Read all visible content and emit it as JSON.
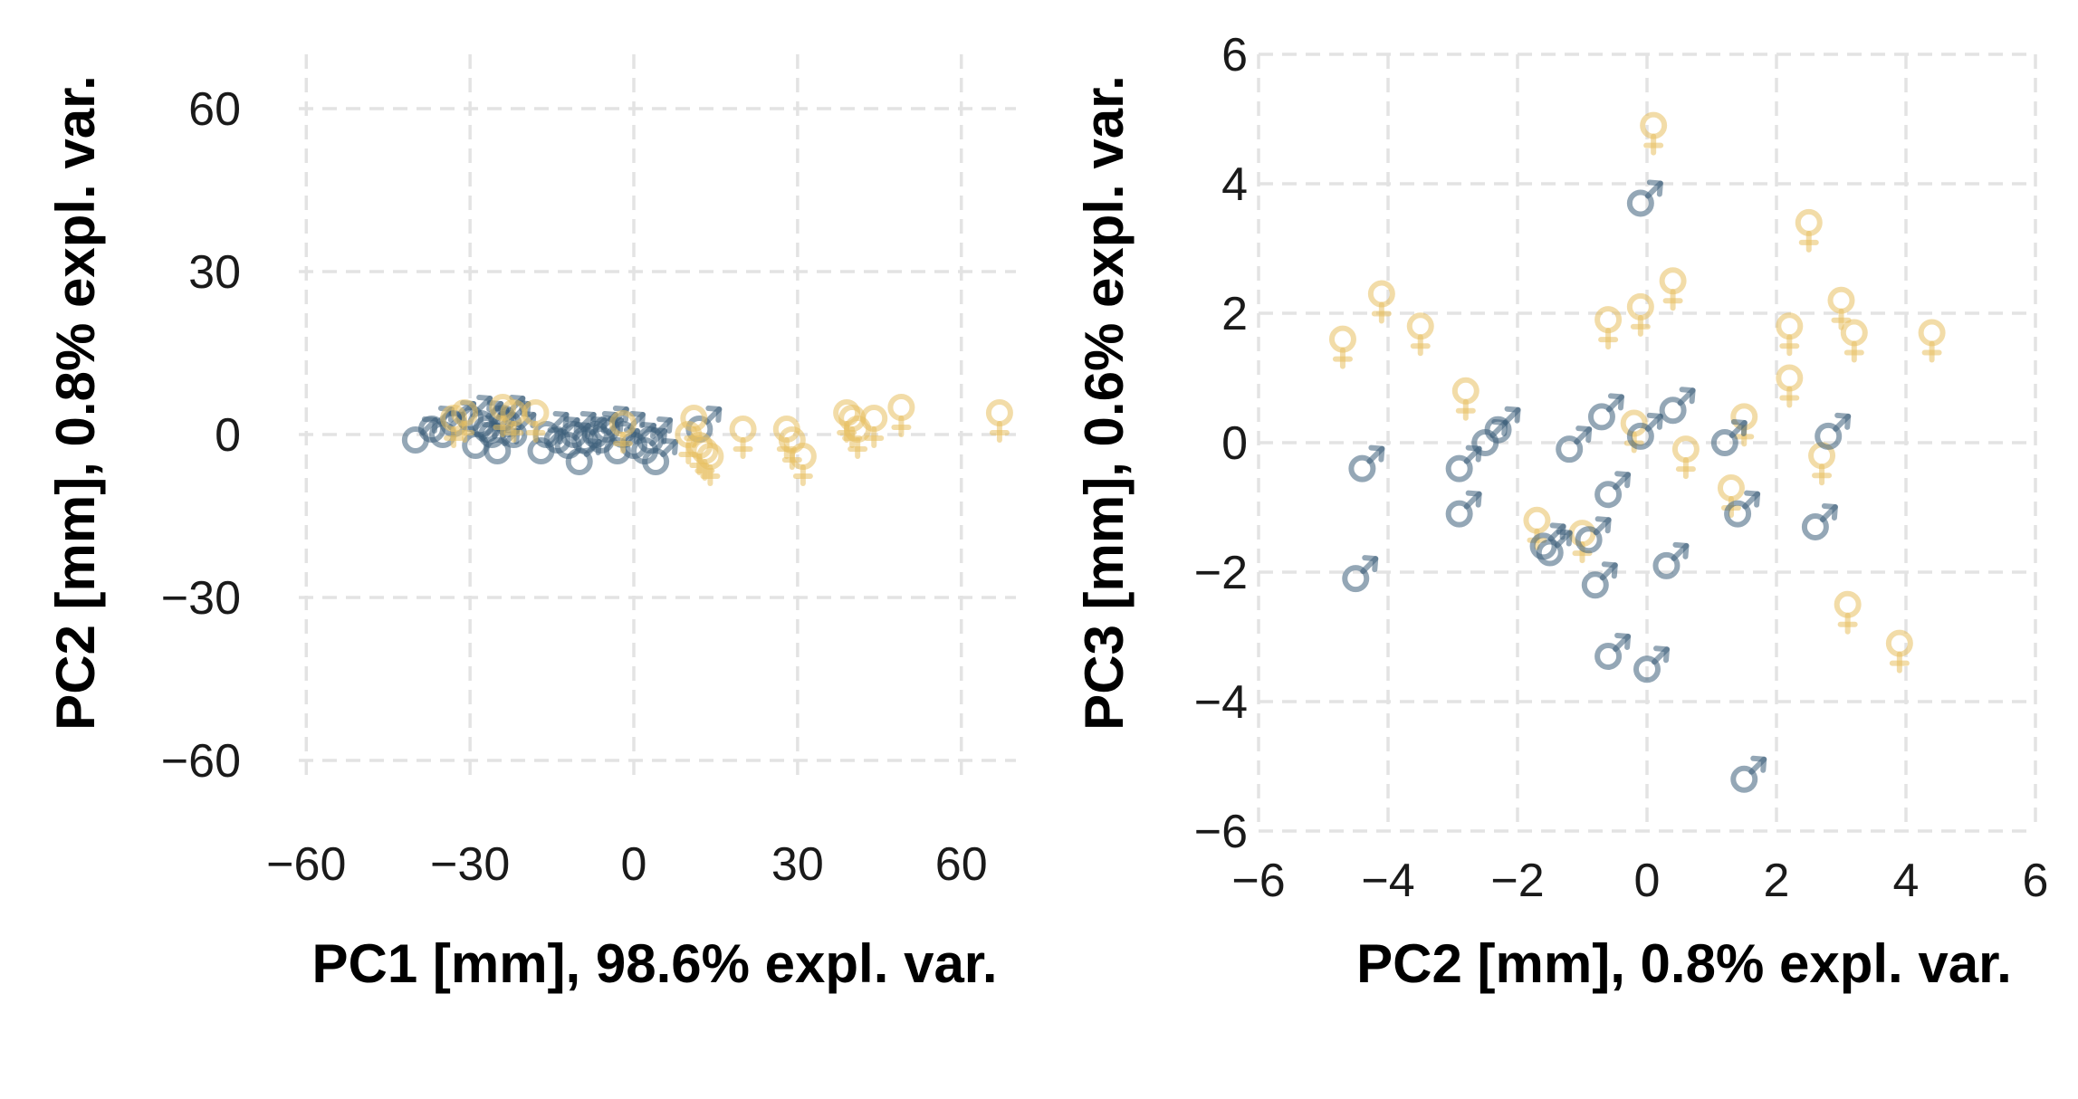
{
  "colors": {
    "male": "#3d5f7a",
    "female": "#e8c060",
    "grid": "#e3e3e3"
  },
  "chart_data": [
    {
      "type": "scatter",
      "xlabel": "PC1 [mm], 98.6% expl. var.",
      "ylabel": "PC2 [mm], 0.8% expl. var.",
      "xlim": [
        -70,
        70
      ],
      "ylim": [
        -70,
        70
      ],
      "xticks": [
        -60,
        -30,
        0,
        30,
        60
      ],
      "yticks": [
        -60,
        -30,
        0,
        30,
        60
      ],
      "xtick_labels": [
        "−60",
        "−30",
        "0",
        "30",
        "60"
      ],
      "ytick_labels": [
        "−60",
        "−30",
        "0",
        "30",
        "60"
      ],
      "grid": true,
      "marker_symbols": [
        "male",
        "female"
      ],
      "points": [
        {
          "x": -40,
          "y": -1,
          "s": "male"
        },
        {
          "x": -37,
          "y": 1,
          "s": "male"
        },
        {
          "x": -35,
          "y": 0,
          "s": "male"
        },
        {
          "x": -33,
          "y": 2,
          "s": "male"
        },
        {
          "x": -30,
          "y": 3,
          "s": "male"
        },
        {
          "x": -29,
          "y": -2,
          "s": "male"
        },
        {
          "x": -28,
          "y": 2,
          "s": "male"
        },
        {
          "x": -27,
          "y": 1,
          "s": "male"
        },
        {
          "x": -26,
          "y": 0,
          "s": "male"
        },
        {
          "x": -25,
          "y": -3,
          "s": "male"
        },
        {
          "x": -24,
          "y": 3,
          "s": "male"
        },
        {
          "x": -23,
          "y": 2,
          "s": "male"
        },
        {
          "x": -22,
          "y": 0,
          "s": "male"
        },
        {
          "x": -17,
          "y": -3,
          "s": "male"
        },
        {
          "x": -16,
          "y": 0,
          "s": "male"
        },
        {
          "x": -14,
          "y": -1,
          "s": "male"
        },
        {
          "x": -12,
          "y": -2,
          "s": "male"
        },
        {
          "x": -11,
          "y": 0,
          "s": "male"
        },
        {
          "x": -10,
          "y": -5,
          "s": "male"
        },
        {
          "x": -9,
          "y": -1,
          "s": "male"
        },
        {
          "x": -7,
          "y": 0,
          "s": "male"
        },
        {
          "x": -6,
          "y": -1,
          "s": "male"
        },
        {
          "x": -5,
          "y": 1,
          "s": "male"
        },
        {
          "x": -3,
          "y": -3,
          "s": "male"
        },
        {
          "x": -2,
          "y": 0,
          "s": "male"
        },
        {
          "x": 0,
          "y": -2,
          "s": "male"
        },
        {
          "x": 2,
          "y": -3,
          "s": "male"
        },
        {
          "x": 3,
          "y": -1,
          "s": "male"
        },
        {
          "x": 4,
          "y": -5,
          "s": "male"
        },
        {
          "x": 12,
          "y": 1,
          "s": "male"
        },
        {
          "x": -33,
          "y": 3,
          "s": "female"
        },
        {
          "x": -31,
          "y": 4,
          "s": "female"
        },
        {
          "x": -24,
          "y": 5,
          "s": "female"
        },
        {
          "x": -22,
          "y": 4,
          "s": "female"
        },
        {
          "x": -18,
          "y": 4,
          "s": "female"
        },
        {
          "x": -2,
          "y": 2,
          "s": "female"
        },
        {
          "x": 10,
          "y": 0,
          "s": "female"
        },
        {
          "x": 11,
          "y": 3,
          "s": "female"
        },
        {
          "x": 12,
          "y": -2,
          "s": "female"
        },
        {
          "x": 13,
          "y": -3,
          "s": "female"
        },
        {
          "x": 14,
          "y": -4,
          "s": "female"
        },
        {
          "x": 20,
          "y": 1,
          "s": "female"
        },
        {
          "x": 28,
          "y": 1,
          "s": "female"
        },
        {
          "x": 29,
          "y": -1,
          "s": "female"
        },
        {
          "x": 31,
          "y": -4,
          "s": "female"
        },
        {
          "x": 39,
          "y": 4,
          "s": "female"
        },
        {
          "x": 40,
          "y": 3,
          "s": "female"
        },
        {
          "x": 41,
          "y": 1,
          "s": "female"
        },
        {
          "x": 44,
          "y": 3,
          "s": "female"
        },
        {
          "x": 49,
          "y": 5,
          "s": "female"
        },
        {
          "x": 67,
          "y": 4,
          "s": "female"
        }
      ]
    },
    {
      "type": "scatter",
      "xlabel": "PC2 [mm], 0.8% expl. var.",
      "ylabel": "PC3 [mm], 0.6% expl. var.",
      "xlim": [
        -6,
        6
      ],
      "ylim": [
        -6,
        6
      ],
      "xticks": [
        -6,
        -4,
        -2,
        0,
        2,
        4,
        6
      ],
      "yticks": [
        -6,
        -4,
        -2,
        0,
        2,
        4,
        6
      ],
      "xtick_labels": [
        "−6",
        "−4",
        "−2",
        "0",
        "2",
        "4",
        "6"
      ],
      "ytick_labels": [
        "−6",
        "−4",
        "−2",
        "0",
        "2",
        "4",
        "6"
      ],
      "grid": true,
      "marker_symbols": [
        "male",
        "female"
      ],
      "points": [
        {
          "x": -4.7,
          "y": 1.6,
          "s": "female"
        },
        {
          "x": -4.1,
          "y": 2.3,
          "s": "female"
        },
        {
          "x": -3.5,
          "y": 1.8,
          "s": "female"
        },
        {
          "x": -2.8,
          "y": 0.8,
          "s": "female"
        },
        {
          "x": -1.7,
          "y": -1.2,
          "s": "female"
        },
        {
          "x": -1.0,
          "y": -1.4,
          "s": "female"
        },
        {
          "x": -0.6,
          "y": 1.9,
          "s": "female"
        },
        {
          "x": -0.2,
          "y": 0.3,
          "s": "female"
        },
        {
          "x": -0.1,
          "y": 2.1,
          "s": "female"
        },
        {
          "x": 0.1,
          "y": 4.9,
          "s": "female"
        },
        {
          "x": 0.4,
          "y": 2.5,
          "s": "female"
        },
        {
          "x": 0.6,
          "y": -0.1,
          "s": "female"
        },
        {
          "x": 1.3,
          "y": -0.7,
          "s": "female"
        },
        {
          "x": 1.5,
          "y": 0.4,
          "s": "female"
        },
        {
          "x": 2.2,
          "y": 1.8,
          "s": "female"
        },
        {
          "x": 2.2,
          "y": 1.0,
          "s": "female"
        },
        {
          "x": 2.5,
          "y": 3.4,
          "s": "female"
        },
        {
          "x": 2.7,
          "y": -0.2,
          "s": "female"
        },
        {
          "x": 3.0,
          "y": 2.2,
          "s": "female"
        },
        {
          "x": 3.1,
          "y": -2.5,
          "s": "female"
        },
        {
          "x": 3.2,
          "y": 1.7,
          "s": "female"
        },
        {
          "x": 3.9,
          "y": -3.1,
          "s": "female"
        },
        {
          "x": 4.4,
          "y": 1.7,
          "s": "female"
        },
        {
          "x": -4.4,
          "y": -0.4,
          "s": "male"
        },
        {
          "x": -4.5,
          "y": -2.1,
          "s": "male"
        },
        {
          "x": -2.9,
          "y": -0.4,
          "s": "male"
        },
        {
          "x": -2.9,
          "y": -1.1,
          "s": "male"
        },
        {
          "x": -2.5,
          "y": 0.0,
          "s": "male"
        },
        {
          "x": -2.3,
          "y": 0.2,
          "s": "male"
        },
        {
          "x": -1.6,
          "y": -1.6,
          "s": "male"
        },
        {
          "x": -1.5,
          "y": -1.7,
          "s": "male"
        },
        {
          "x": -1.2,
          "y": -0.1,
          "s": "male"
        },
        {
          "x": -0.9,
          "y": -1.5,
          "s": "male"
        },
        {
          "x": -0.8,
          "y": -2.2,
          "s": "male"
        },
        {
          "x": -0.7,
          "y": 0.4,
          "s": "male"
        },
        {
          "x": -0.6,
          "y": -0.8,
          "s": "male"
        },
        {
          "x": -0.6,
          "y": -3.3,
          "s": "male"
        },
        {
          "x": -0.1,
          "y": 3.7,
          "s": "male"
        },
        {
          "x": -0.1,
          "y": 0.1,
          "s": "male"
        },
        {
          "x": 0.0,
          "y": -3.5,
          "s": "male"
        },
        {
          "x": 0.3,
          "y": -1.9,
          "s": "male"
        },
        {
          "x": 0.4,
          "y": 0.5,
          "s": "male"
        },
        {
          "x": 1.2,
          "y": 0.0,
          "s": "male"
        },
        {
          "x": 1.4,
          "y": -1.1,
          "s": "male"
        },
        {
          "x": 1.5,
          "y": -5.2,
          "s": "male"
        },
        {
          "x": 2.6,
          "y": -1.3,
          "s": "male"
        },
        {
          "x": 2.8,
          "y": 0.1,
          "s": "male"
        }
      ]
    }
  ]
}
